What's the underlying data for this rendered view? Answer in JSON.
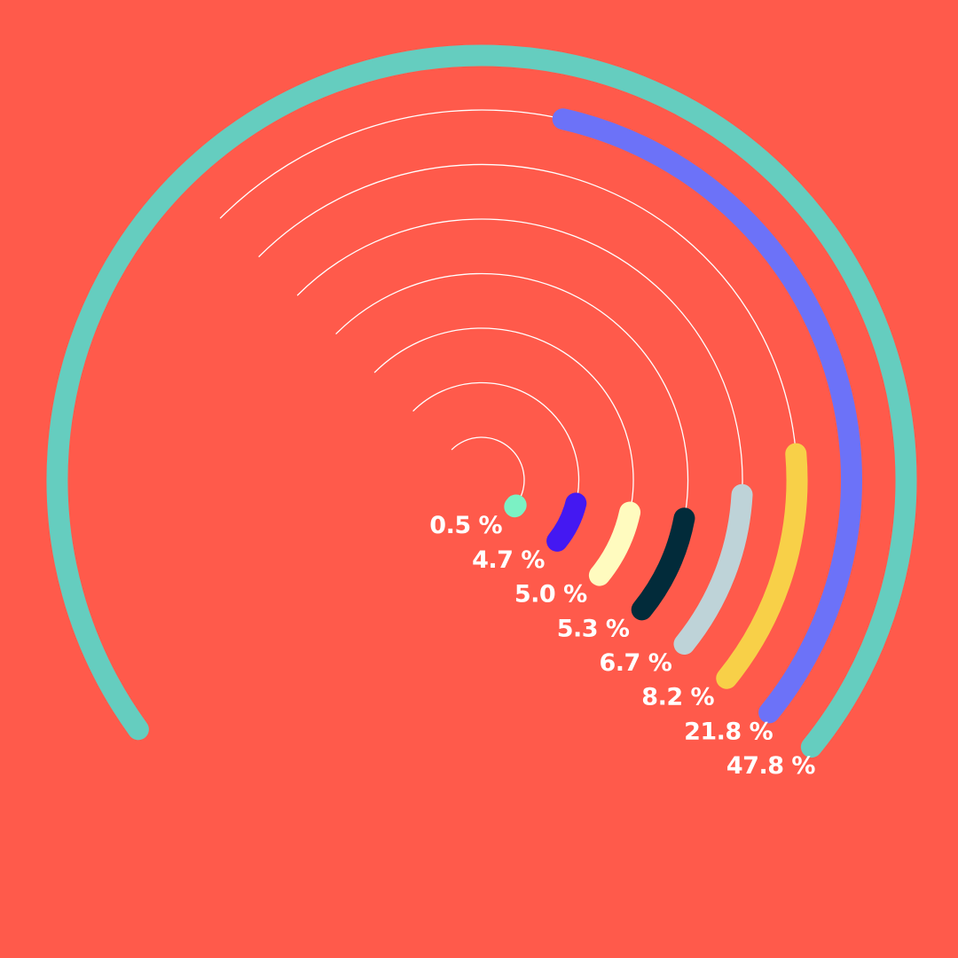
{
  "page": {
    "background_color": "#FF5A4B",
    "guide_color": "#FFFFFF"
  },
  "chart_data": {
    "type": "radial-bar",
    "value_unit": "%",
    "values": [
      0.5,
      4.7,
      5.0,
      5.3,
      6.7,
      8.2,
      21.8,
      47.8
    ],
    "labels": [
      "0.5 %",
      "4.7 %",
      "5.0 %",
      "5.3 %",
      "6.7 %",
      "8.2 %",
      "21.8 %",
      "47.8 %"
    ],
    "colors": [
      "#7BF1C4",
      "#4418F2",
      "#FFFBBF",
      "#022B3A",
      "#BED3D8",
      "#F8D048",
      "#6C72F8",
      "#65CDBF"
    ],
    "legend": "none",
    "grid": true
  }
}
